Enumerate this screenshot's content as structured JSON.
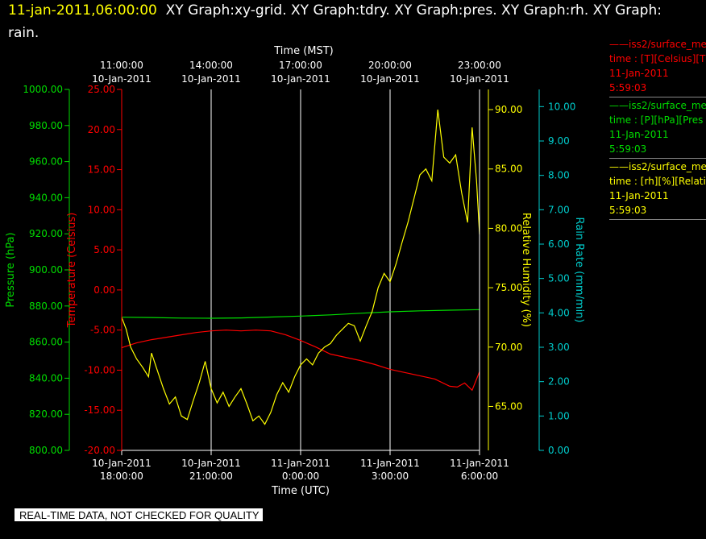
{
  "header": {
    "timestamp": "11-jan-2011,06:00:00",
    "graphs_line1": "XY Graph:xy-grid.  XY Graph:tdry.  XY Graph:pres.  XY Graph:rh.  XY Graph:",
    "graphs_line2": "rain."
  },
  "legend": [
    {
      "id": "temperature",
      "color": "#ff0000",
      "line1": "iss2/surface_me",
      "line2": "time : [T][Celsius][T",
      "line3": "11-Jan-2011",
      "line4": "5:59:03"
    },
    {
      "id": "pressure",
      "color": "#00dd00",
      "line1": "iss2/surface_me",
      "line2": "time : [P][hPa][Pres",
      "line3": "11-Jan-2011",
      "line4": "5:59:03"
    },
    {
      "id": "humidity",
      "color": "#ffff00",
      "line1": "iss2/surface_me",
      "line2": "time : [rh][%][Relati",
      "line3": "11-Jan-2011",
      "line4": "5:59:03"
    }
  ],
  "footer": {
    "quality_note": "REAL-TIME DATA, NOT CHECKED FOR QUALITY"
  },
  "chart_data": {
    "type": "line",
    "colors": {
      "temperature": "#ff0000",
      "pressure": "#00dd00",
      "humidity": "#ffff00",
      "rain": "#00cccc",
      "grid": "#ffffff"
    },
    "x_top": {
      "label": "Time (MST)",
      "ticks": [
        {
          "t": 1.0,
          "line1": "11:00:00",
          "line2": "10-Jan-2011"
        },
        {
          "t": 4.0,
          "line1": "14:00:00",
          "line2": "10-Jan-2011"
        },
        {
          "t": 7.0,
          "line1": "17:00:00",
          "line2": "10-Jan-2011"
        },
        {
          "t": 10.0,
          "line1": "20:00:00",
          "line2": "10-Jan-2011"
        },
        {
          "t": 13.0,
          "line1": "23:00:00",
          "line2": "10-Jan-2011"
        }
      ]
    },
    "x_bottom": {
      "label": "Time (UTC)",
      "range_hours_since_18utc": [
        0,
        12
      ],
      "ticks": [
        {
          "t": 0,
          "line1": "10-Jan-2011",
          "line2": "18:00:00"
        },
        {
          "t": 3,
          "line1": "10-Jan-2011",
          "line2": "21:00:00"
        },
        {
          "t": 6,
          "line1": "11-Jan-2011",
          "line2": "0:00:00"
        },
        {
          "t": 9,
          "line1": "11-Jan-2011",
          "line2": "3:00:00"
        },
        {
          "t": 12,
          "line1": "11-Jan-2011",
          "line2": "6:00:00"
        }
      ]
    },
    "y_axes": {
      "pressure": {
        "label": "Pressure (hPa)",
        "ylim": [
          800,
          1000
        ],
        "ticks": [
          "800.00",
          "820.00",
          "840.00",
          "860.00",
          "880.00",
          "900.00",
          "920.00",
          "940.00",
          "960.00",
          "980.00",
          "1000.00"
        ]
      },
      "temperature": {
        "label": "Temperature (Celsius)",
        "ylim": [
          -20,
          25
        ],
        "ticks": [
          "-20.00",
          "-15.00",
          "-10.00",
          "-5.00",
          "0.00",
          "5.00",
          "10.00",
          "15.00",
          "20.00",
          "25.00"
        ]
      },
      "humidity": {
        "label": "Relative Humidity (%)",
        "ylim": [
          61.3,
          91.7
        ],
        "ticks": [
          "65.00",
          "70.00",
          "75.00",
          "80.00",
          "85.00",
          "90.00"
        ]
      },
      "rain": {
        "label": "Rain Rate (mm/min)",
        "ylim": [
          0,
          10.5
        ],
        "ticks": [
          "0.00",
          "1.00",
          "2.00",
          "3.00",
          "4.00",
          "5.00",
          "6.00",
          "7.00",
          "8.00",
          "9.00",
          "10.00"
        ]
      }
    },
    "series": [
      {
        "name": "iss2/surface_me T",
        "axis": "temperature",
        "x": [
          0,
          0.5,
          1,
          1.5,
          2,
          2.5,
          3,
          3.5,
          4,
          4.5,
          5,
          5.5,
          6,
          6.5,
          7,
          7.5,
          8,
          8.5,
          9,
          9.5,
          10,
          10.5,
          11,
          11.25,
          11.5,
          11.75,
          12
        ],
        "y": [
          -7.2,
          -6.6,
          -6.2,
          -5.9,
          -5.6,
          -5.3,
          -5.1,
          -5.0,
          -5.1,
          -5.0,
          -5.1,
          -5.6,
          -6.3,
          -7.1,
          -8.0,
          -8.4,
          -8.8,
          -9.3,
          -9.9,
          -10.3,
          -10.7,
          -11.1,
          -12.0,
          -12.1,
          -11.6,
          -12.5,
          -10.2
        ]
      },
      {
        "name": "iss2/surface_me P",
        "axis": "pressure",
        "x": [
          0,
          1,
          2,
          3,
          4,
          5,
          6,
          7,
          8,
          9,
          10,
          11,
          12
        ],
        "y": [
          873.8,
          873.6,
          873.3,
          873.2,
          873.4,
          873.9,
          874.4,
          875.1,
          876.0,
          876.8,
          877.3,
          877.7,
          878.0
        ]
      },
      {
        "name": "iss2/surface_me rh",
        "axis": "humidity",
        "x": [
          0,
          0.15,
          0.3,
          0.5,
          0.7,
          0.9,
          1.0,
          1.2,
          1.4,
          1.6,
          1.8,
          2.0,
          2.2,
          2.4,
          2.6,
          2.8,
          3.0,
          3.2,
          3.4,
          3.6,
          3.8,
          4.0,
          4.2,
          4.4,
          4.6,
          4.8,
          5.0,
          5.2,
          5.4,
          5.6,
          5.8,
          6.0,
          6.2,
          6.4,
          6.6,
          6.8,
          7.0,
          7.2,
          7.4,
          7.6,
          7.8,
          8.0,
          8.2,
          8.4,
          8.6,
          8.8,
          9.0,
          9.2,
          9.4,
          9.6,
          9.8,
          10.0,
          10.2,
          10.4,
          10.6,
          10.8,
          11.0,
          11.2,
          11.4,
          11.6,
          11.75,
          11.9,
          12.0
        ],
        "y": [
          72.5,
          71.5,
          70.0,
          69.0,
          68.3,
          67.5,
          69.5,
          68.0,
          66.5,
          65.2,
          65.8,
          64.2,
          63.9,
          65.5,
          67.0,
          68.8,
          66.5,
          65.3,
          66.2,
          65.0,
          65.8,
          66.5,
          65.2,
          63.8,
          64.2,
          63.5,
          64.5,
          66.0,
          67.0,
          66.2,
          67.5,
          68.5,
          69.0,
          68.5,
          69.5,
          70.0,
          70.3,
          71.0,
          71.5,
          72.0,
          71.8,
          70.5,
          71.8,
          73.0,
          75.0,
          76.2,
          75.5,
          77.0,
          78.8,
          80.5,
          82.5,
          84.5,
          85.0,
          84.0,
          90.0,
          86.0,
          85.5,
          86.2,
          83.0,
          80.5,
          88.5,
          84.0,
          79.5
        ]
      }
    ]
  }
}
